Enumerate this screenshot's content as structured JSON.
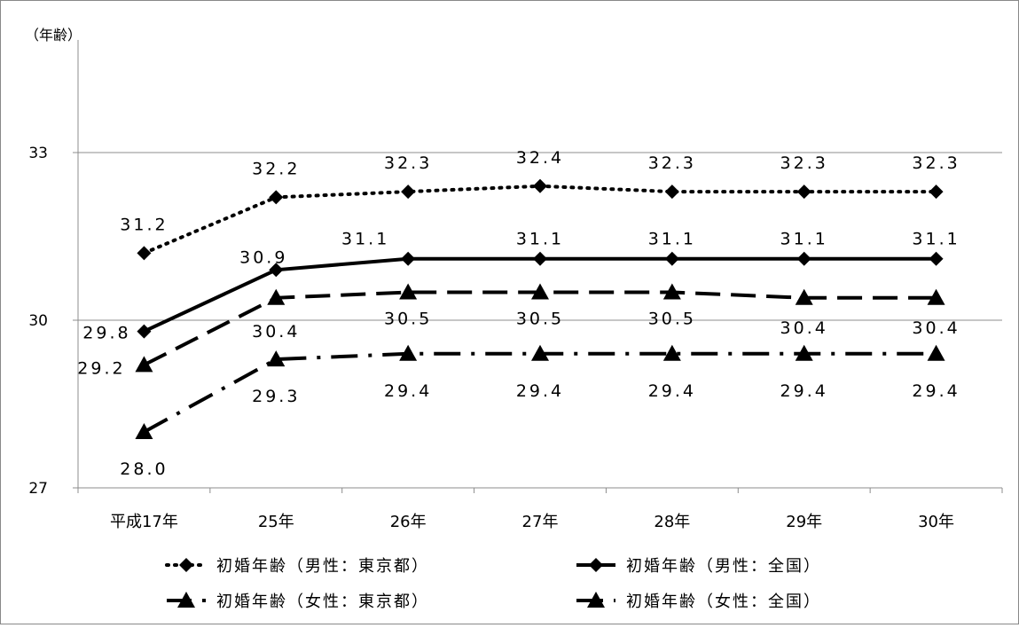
{
  "chart_data": {
    "type": "line",
    "ylabel": "（年齢）",
    "categories": [
      "平成17年",
      "25年",
      "26年",
      "27年",
      "28年",
      "29年",
      "30年"
    ],
    "ylim": [
      27,
      33
    ],
    "yticks": [
      27,
      30,
      33
    ],
    "grid": true,
    "legend_position": "bottom",
    "series": [
      {
        "name": "初婚年齢（男性：東京都）",
        "values": [
          31.2,
          32.2,
          32.3,
          32.4,
          32.3,
          32.3,
          32.3
        ],
        "labels": [
          "31.2",
          "32.2",
          "32.3",
          "32.4",
          "32.3",
          "32.3",
          "32.3"
        ],
        "marker": "diamond",
        "dash": "dotted",
        "color": "#000000"
      },
      {
        "name": "初婚年齢（男性：全国）",
        "values": [
          29.8,
          30.9,
          31.1,
          31.1,
          31.1,
          31.1,
          31.1
        ],
        "labels": [
          "29.8",
          "30.9",
          "31.1",
          "31.1",
          "31.1",
          "31.1",
          "31.1"
        ],
        "marker": "diamond",
        "dash": "solid",
        "color": "#000000"
      },
      {
        "name": "初婚年齢（女性：東京都）",
        "values": [
          29.2,
          30.4,
          30.5,
          30.5,
          30.5,
          30.4,
          30.4
        ],
        "labels": [
          "29.2",
          "30.4",
          "30.5",
          "30.5",
          "30.5",
          "30.4",
          "30.4"
        ],
        "marker": "triangle",
        "dash": "dashed",
        "color": "#000000"
      },
      {
        "name": "初婚年齢（女性：全国）",
        "values": [
          28.0,
          29.3,
          29.4,
          29.4,
          29.4,
          29.4,
          29.4
        ],
        "labels": [
          "28.0",
          "29.3",
          "29.4",
          "29.4",
          "29.4",
          "29.4",
          "29.4"
        ],
        "marker": "triangle",
        "dash": "dashdot",
        "color": "#000000"
      }
    ]
  }
}
